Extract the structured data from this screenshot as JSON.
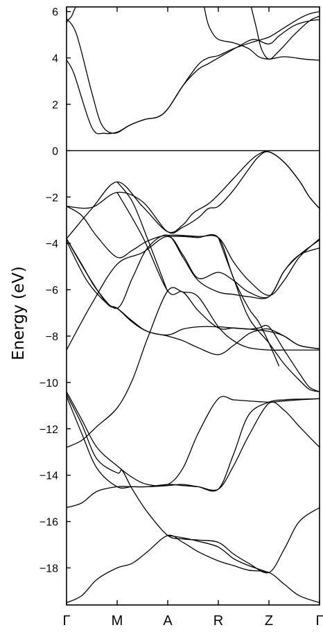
{
  "chart_data": {
    "type": "line",
    "title": "",
    "xlabel": "",
    "ylabel": "Energy (eV)",
    "ylim": [
      -19.6,
      6.2
    ],
    "grid": false,
    "legend": "none",
    "k_points": [
      "Γ",
      "M",
      "A",
      "R",
      "Z",
      "Γ"
    ],
    "y_ticks": [
      6,
      4,
      2,
      0,
      -2,
      -4,
      -6,
      -8,
      -10,
      -12,
      -14,
      -16,
      -18
    ],
    "y_tick_labels": [
      "6",
      "4",
      "2",
      "0",
      "−2",
      "−4",
      "−6",
      "−8",
      "−10",
      "−12",
      "−14",
      "−16",
      "−18"
    ],
    "fermi_level": 0,
    "series": [
      {
        "x": [
          0,
          0.15,
          0.5,
          0.75,
          1.0,
          1.25,
          1.55,
          1.8,
          2.0,
          2.3,
          2.6,
          2.8,
          3.0,
          3.4,
          3.7,
          4.0,
          4.2,
          4.5,
          4.8,
          5.0
        ],
        "values": [
          3.9,
          3.3,
          1.0,
          0.75,
          0.8,
          1.1,
          1.35,
          1.45,
          1.8,
          2.8,
          3.5,
          3.75,
          4.0,
          4.5,
          4.8,
          4.6,
          4.95,
          5.4,
          5.6,
          5.65
        ]
      },
      {
        "x": [
          0,
          0.2,
          0.5,
          0.7,
          0.95,
          1.25,
          1.55,
          1.8,
          2.0,
          2.3,
          2.6,
          2.8,
          3.0,
          3.3,
          3.7,
          4.0,
          4.3,
          4.6,
          4.8,
          5.0
        ],
        "values": [
          5.7,
          5.0,
          2.5,
          1.1,
          0.75,
          1.1,
          1.35,
          1.45,
          1.8,
          2.8,
          3.7,
          4.0,
          4.1,
          4.4,
          4.7,
          4.9,
          5.3,
          5.7,
          5.9,
          6.0
        ]
      },
      {
        "x": [
          0,
          0.02,
          0.06,
          0.1,
          0.14,
          0.18
        ],
        "values": [
          5.5,
          5.6,
          5.7,
          5.8,
          6.0,
          6.2
        ]
      },
      {
        "x": [
          2.72,
          2.78,
          2.85,
          3.0,
          3.3,
          3.6,
          3.8,
          4.0,
          4.3,
          4.7,
          5.0
        ],
        "values": [
          6.2,
          5.6,
          5.2,
          4.8,
          4.65,
          4.4,
          4.05,
          3.95,
          4.05,
          3.95,
          3.9
        ]
      },
      {
        "x": [
          3.65,
          3.75,
          3.85,
          4.0,
          4.2,
          4.5,
          4.8,
          5.0
        ],
        "values": [
          6.2,
          5.3,
          4.4,
          3.95,
          4.3,
          5.0,
          5.6,
          5.8
        ]
      },
      {
        "x": [
          0,
          0.5,
          1.0,
          1.5,
          2.0,
          2.3,
          2.5,
          2.8,
          3.0,
          3.3,
          3.6,
          3.8,
          4.0,
          4.3,
          4.6,
          4.8,
          5.0
        ],
        "values": [
          -3.8,
          -2.5,
          -1.35,
          -2.4,
          -3.5,
          -3.2,
          -2.7,
          -2.3,
          -1.9,
          -1.2,
          -0.5,
          -0.15,
          -0.05,
          -0.5,
          -1.3,
          -2.0,
          -2.5
        ]
      },
      {
        "x": [
          0,
          0.5,
          1.0,
          1.5,
          2.0,
          2.3,
          2.6,
          2.8,
          3.0,
          3.3,
          3.6,
          3.8,
          4.0,
          4.3,
          4.6,
          4.8,
          5.0
        ],
        "values": [
          -2.4,
          -2.45,
          -1.8,
          -2.2,
          -3.5,
          -3.3,
          -2.9,
          -2.5,
          -2.4,
          -1.7,
          -0.8,
          -0.25,
          -0.05,
          -0.5,
          -1.3,
          -2.0,
          -2.5
        ]
      },
      {
        "x": [
          0,
          0.3,
          0.6,
          1.0,
          1.3,
          1.6,
          2.0,
          2.6,
          3.0,
          3.3,
          3.6,
          4.0,
          4.3,
          4.6,
          5.0
        ],
        "values": [
          -2.4,
          -2.8,
          -3.7,
          -4.6,
          -4.3,
          -3.9,
          -3.65,
          -3.7,
          -3.75,
          -4.8,
          -5.6,
          -6.25,
          -5.6,
          -4.6,
          -3.8
        ]
      },
      {
        "x": [
          0,
          0.4,
          0.8,
          1.0,
          1.3,
          1.6,
          2.0,
          2.3,
          2.6,
          3.0,
          3.3,
          3.6,
          3.8,
          4.0,
          4.3,
          4.6,
          5.0
        ],
        "values": [
          -3.9,
          -5.6,
          -6.6,
          -6.8,
          -7.4,
          -7.8,
          -8.0,
          -8.2,
          -8.5,
          -8.8,
          -8.4,
          -7.9,
          -7.75,
          -7.7,
          -8.0,
          -8.4,
          -8.55
        ]
      },
      {
        "x": [
          0,
          0.4,
          0.8,
          1.0,
          1.3,
          1.6,
          2.0,
          2.3,
          2.6,
          3.0,
          3.3,
          3.6,
          4.0,
          4.3,
          4.6,
          5.0
        ],
        "values": [
          -3.8,
          -5.3,
          -6.6,
          -6.8,
          -7.35,
          -7.8,
          -7.95,
          -7.7,
          -7.6,
          -7.6,
          -7.65,
          -7.7,
          -7.8,
          -8.0,
          -8.4,
          -8.55
        ]
      },
      {
        "x": [
          0,
          0.5,
          1.0,
          1.5,
          2.0,
          2.3,
          2.6,
          3.0,
          3.3,
          3.6,
          4.0,
          4.3,
          4.6,
          5.0
        ],
        "values": [
          -8.6,
          -6.6,
          -4.9,
          -4.4,
          -3.7,
          -4.5,
          -5.5,
          -5.25,
          -5.6,
          -6.1,
          -6.3,
          -5.2,
          -4.5,
          -4.2
        ]
      },
      {
        "x": [
          0,
          0.3,
          0.6,
          1.0,
          1.3,
          1.6,
          2.0,
          2.3,
          2.6,
          3.0,
          3.3,
          3.6,
          4.0,
          4.3,
          4.6,
          5.0
        ],
        "values": [
          -3.8,
          -4.9,
          -6.0,
          -6.8,
          -5.5,
          -4.2,
          -3.65,
          -4.6,
          -5.6,
          -6.1,
          -6.2,
          -6.3,
          -6.3,
          -5.2,
          -4.5,
          -3.85
        ]
      },
      {
        "x": [
          1.0,
          1.3,
          1.6,
          2.0
        ],
        "values": [
          -1.35,
          -2.2,
          -3.8,
          -6.1
        ]
      },
      {
        "x": [
          1.0,
          1.5,
          2.0,
          2.3,
          2.6,
          3.0,
          3.3,
          3.6,
          3.8,
          4.0,
          4.3,
          4.6,
          4.8,
          5.0
        ],
        "values": [
          -1.8,
          -3.7,
          -6.05,
          -6.1,
          -6.9,
          -7.65,
          -7.65,
          -7.7,
          -7.65,
          -7.6,
          -8.6,
          -9.6,
          -10.2,
          -10.4
        ]
      },
      {
        "x": [
          2.0,
          2.3,
          2.6,
          3.0,
          3.3,
          3.6,
          3.8,
          4.0,
          4.2
        ],
        "values": [
          -3.7,
          -3.7,
          -3.75,
          -3.75,
          -5.5,
          -6.8,
          -7.4,
          -8.3,
          -9.3
        ]
      },
      {
        "x": [
          3.0,
          3.3,
          3.6,
          4.0,
          4.3,
          4.6,
          4.8,
          5.0
        ],
        "values": [
          -3.75,
          -5.5,
          -7.2,
          -8.3,
          -9.2,
          -9.9,
          -10.3,
          -10.4
        ]
      },
      {
        "x": [
          0,
          0.3,
          0.6,
          1.0,
          1.3,
          1.6,
          2.0,
          2.3,
          2.6,
          3.0,
          3.3,
          3.6,
          4.0,
          4.3,
          4.6,
          5.0
        ],
        "values": [
          -12.8,
          -12.5,
          -11.9,
          -11.1,
          -9.9,
          -8.1,
          -6.05,
          -6.1,
          -6.3,
          -7.6,
          -8.2,
          -8.5,
          -8.6,
          -8.6,
          -8.6,
          -8.6
        ]
      },
      {
        "x": [
          0,
          0.3,
          0.6,
          1.0,
          1.3,
          1.6,
          2.0,
          2.3,
          2.6,
          3.0,
          3.3,
          3.6,
          4.0,
          4.3,
          4.6,
          5.0
        ],
        "values": [
          -10.4,
          -11.6,
          -12.8,
          -13.6,
          -14.1,
          -14.4,
          -14.4,
          -13.7,
          -12.2,
          -10.7,
          -10.75,
          -10.8,
          -10.85,
          -10.8,
          -10.75,
          -10.7
        ]
      },
      {
        "x": [
          0,
          0.3,
          0.6,
          1.0,
          1.3,
          1.6,
          2.0,
          2.3,
          2.6,
          3.0,
          3.3,
          3.6,
          4.0,
          4.3,
          4.6,
          5.0
        ],
        "values": [
          -10.6,
          -12.2,
          -13.7,
          -14.5,
          -14.5,
          -14.5,
          -14.4,
          -14.45,
          -14.5,
          -14.6,
          -13.6,
          -12.3,
          -10.9,
          -11.2,
          -11.9,
          -12.8
        ]
      },
      {
        "x": [
          0,
          0.3,
          0.6,
          1.0,
          1.3,
          1.6,
          2.0,
          2.3,
          2.6,
          3.0,
          3.3,
          3.6,
          4.0,
          4.3,
          4.6,
          5.0
        ],
        "values": [
          -15.4,
          -15.2,
          -14.7,
          -14.5,
          -14.5,
          -14.5,
          -14.45,
          -14.4,
          -14.5,
          -14.6,
          -13.1,
          -11.4,
          -10.85,
          -10.75,
          -10.72,
          -10.7
        ]
      },
      {
        "x": [
          0,
          0.3,
          0.6,
          1.0,
          1.1,
          1.3,
          1.6,
          2.0,
          2.3,
          2.6,
          3.0,
          3.3,
          3.6,
          4.0,
          4.3,
          4.6,
          5.0
        ],
        "values": [
          -10.5,
          -11.8,
          -13.3,
          -13.9,
          -13.8,
          -14.6,
          -15.6,
          -16.6,
          -16.75,
          -16.8,
          -16.9,
          -17.4,
          -17.8,
          -18.2,
          -17.2,
          -16.0,
          -15.4
        ]
      },
      {
        "x": [
          0,
          0.3,
          0.6,
          1.0,
          1.3,
          1.6,
          2.0,
          2.3,
          2.6,
          3.0,
          3.3,
          3.6,
          4.0,
          4.3,
          4.6,
          5.0
        ],
        "values": [
          -19.5,
          -19.2,
          -18.5,
          -18.0,
          -17.8,
          -17.3,
          -16.6,
          -16.9,
          -17.3,
          -17.7,
          -17.9,
          -18.1,
          -18.2,
          -18.7,
          -19.2,
          -19.5
        ]
      },
      {
        "x": [
          2.0,
          2.3,
          2.6,
          3.0,
          3.3,
          3.6,
          4.0
        ],
        "values": [
          -16.6,
          -16.7,
          -16.85,
          -17.1,
          -17.6,
          -17.9,
          -18.2
        ]
      }
    ]
  }
}
